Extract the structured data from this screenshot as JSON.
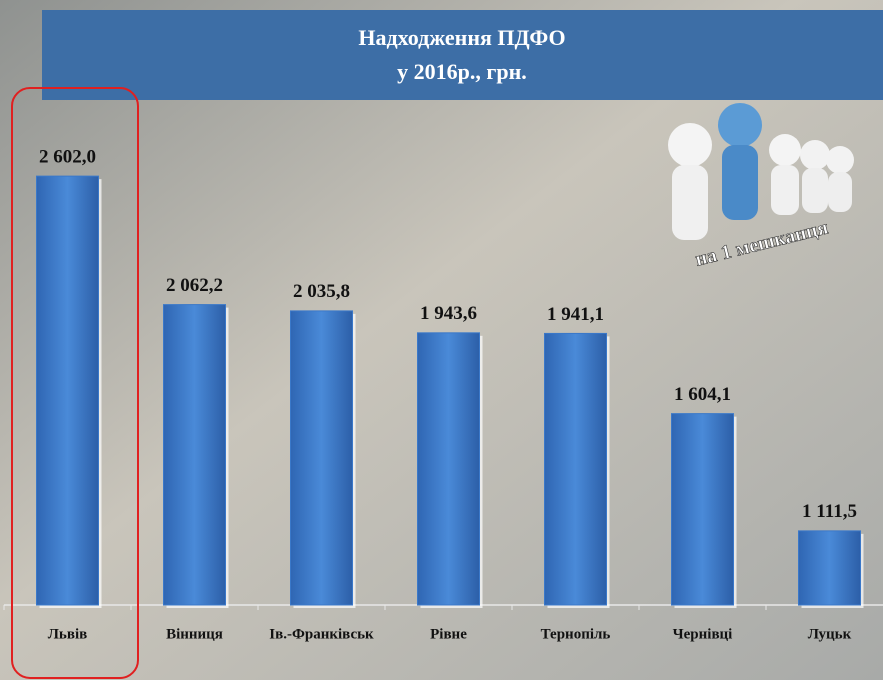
{
  "chart_data": {
    "type": "bar",
    "title": "Надходження ПДФО",
    "subtitle": "у 2016р., грн.",
    "annotation": "на 1 мешканця",
    "categories": [
      "Львів",
      "Вінниця",
      "Ів.-Франківськ",
      "Рівне",
      "Тернопіль",
      "Чернівці",
      "Луцьк"
    ],
    "values": [
      2602.0,
      2062.2,
      2035.8,
      1943.6,
      1941.1,
      1604.1,
      1111.5
    ],
    "value_labels": [
      "2 602,0",
      "2 062,2",
      "2 035,8",
      "1 943,6",
      "1 941,1",
      "1 604,1",
      "1 111,5"
    ],
    "color": "#3a78c9",
    "ylim": [
      800,
      2800
    ]
  }
}
